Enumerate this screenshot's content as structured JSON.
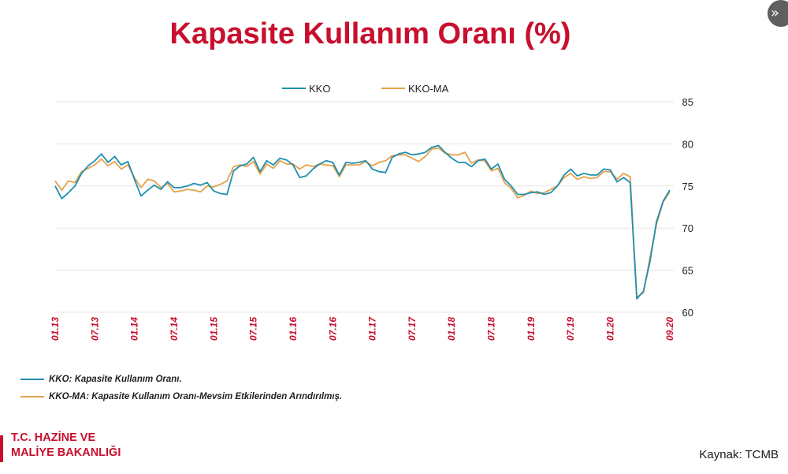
{
  "page": {
    "title": "Kapasite Kullanım Oranı (%)",
    "source": "Kaynak: TCMB",
    "org_line1": "T.C. HAZİNE VE",
    "org_line2": "MALİYE BAKANLIĞI",
    "nav_icon": "double-chevron-right-icon"
  },
  "notes": [
    {
      "label": "KKO: Kapasite Kullanım Oranı.",
      "color": "#1f8fb0"
    },
    {
      "label": "KKO-MA:  Kapasite Kullanım Oranı-Mevsim Etkilerinden Arındırılmış.",
      "color": "#e6a24a"
    }
  ],
  "colors": {
    "title": "#c8102e",
    "kko": "#1f8fb0",
    "kko_ma": "#e6a24a",
    "grid": "#e6e6e6",
    "tick": "#c8102e"
  },
  "chart_data": {
    "type": "line",
    "title": "Kapasite Kullanım Oranı (%)",
    "ylim": [
      60,
      85
    ],
    "yticks": [
      60,
      65,
      70,
      75,
      80,
      85
    ],
    "y_axis_side": "right",
    "grid": true,
    "legend": "top",
    "x_tick_labels": [
      "01.13",
      "07.13",
      "01.14",
      "07.14",
      "01.15",
      "07.15",
      "01.16",
      "07.16",
      "01.17",
      "07.17",
      "01.18",
      "07.18",
      "01.19",
      "07.19",
      "01.20",
      "09.20"
    ],
    "series": [
      {
        "name": "KKO",
        "color": "#1f8fb0",
        "values": [
          75.0,
          73.5,
          74.2,
          75.0,
          76.5,
          77.4,
          78.0,
          78.8,
          77.8,
          78.5,
          77.5,
          77.9,
          75.8,
          73.8,
          74.5,
          75.1,
          74.6,
          75.5,
          74.8,
          74.8,
          75.0,
          75.3,
          75.1,
          75.4,
          74.4,
          74.1,
          74.0,
          76.8,
          77.4,
          77.6,
          78.4,
          76.7,
          78.0,
          77.5,
          78.3,
          78.1,
          77.5,
          76.0,
          76.2,
          77.0,
          77.6,
          78.0,
          77.8,
          76.3,
          77.8,
          77.7,
          77.8,
          78.0,
          77.0,
          76.7,
          76.6,
          78.4,
          78.8,
          79.0,
          78.7,
          78.8,
          79.0,
          79.6,
          79.8,
          79.0,
          78.3,
          77.8,
          77.8,
          77.3,
          78.0,
          78.2,
          77.0,
          77.6,
          75.8,
          75.0,
          74.0,
          74.0,
          74.2,
          74.3,
          74.0,
          74.2,
          75.0,
          76.3,
          77.0,
          76.2,
          76.5,
          76.3,
          76.3,
          77.0,
          76.9,
          75.5,
          76.0,
          75.4,
          61.6,
          62.5,
          66.0,
          70.8,
          73.2,
          74.5
        ]
      },
      {
        "name": "KKO-MA",
        "color": "#e6a24a",
        "values": [
          75.6,
          74.5,
          75.6,
          75.4,
          76.7,
          77.1,
          77.5,
          78.2,
          77.4,
          77.9,
          77.0,
          77.5,
          76.0,
          74.8,
          75.8,
          75.6,
          74.8,
          75.3,
          74.3,
          74.4,
          74.6,
          74.5,
          74.3,
          75.0,
          74.9,
          75.2,
          75.6,
          77.3,
          77.5,
          77.3,
          77.9,
          76.4,
          77.6,
          77.1,
          78.0,
          77.6,
          77.6,
          77.0,
          77.5,
          77.3,
          77.6,
          77.5,
          77.4,
          76.1,
          77.5,
          77.5,
          77.5,
          77.9,
          77.4,
          77.8,
          78.0,
          78.6,
          78.7,
          78.7,
          78.3,
          77.9,
          78.5,
          79.4,
          79.5,
          78.9,
          78.7,
          78.7,
          79.0,
          77.7,
          78.1,
          78.0,
          76.8,
          77.1,
          75.4,
          74.7,
          73.6,
          73.9,
          74.4,
          74.1,
          74.2,
          74.6,
          75.0,
          76.0,
          76.5,
          75.8,
          76.1,
          75.9,
          76.0,
          76.7,
          76.7,
          75.8,
          76.5,
          76.1,
          61.8,
          62.3,
          66.5,
          70.5,
          73.1,
          74.3
        ]
      }
    ]
  }
}
